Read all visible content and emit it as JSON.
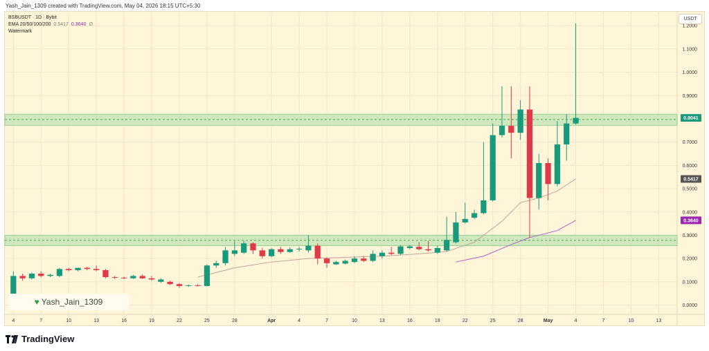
{
  "header": {
    "text": "Yash_Jain_1309 created with TradingView.com, May 04, 2026 18:15 UTC+5:30"
  },
  "legend": {
    "symbol": "BSBUSDT · 1D · Bybit",
    "ema_label": "EMA 20/50/100/200",
    "ema_val1": "0.5417",
    "ema_val2": "0.3640",
    "ema_val3": "∅",
    "watermark_label": "Watermark"
  },
  "watermark": {
    "text": "Yash_Jain_1309"
  },
  "currency": "USDT",
  "footer": {
    "brand": "TradingView",
    "icon": "tradingview-logo-icon"
  },
  "colors": {
    "up": "#1a9a7c",
    "down": "#e03a4a",
    "ema20": "#c2a49a",
    "ema50": "#b060c8",
    "zone": "#bfe3b3",
    "zone_line": "#3a8a3a",
    "bg": "#fff5d9"
  },
  "chart_data": {
    "type": "candlestick",
    "symbol": "BSBUSDT",
    "interval": "1D",
    "exchange": "Bybit",
    "y_ticks": [
      "1.2000",
      "1.1000",
      "1.0000",
      "0.9000",
      "0.8000",
      "0.7000",
      "0.6000",
      "0.5000",
      "0.4000",
      "0.3000",
      "0.2000",
      "0.1000",
      "0.0000"
    ],
    "ylim": [
      -0.04,
      1.26
    ],
    "x_ticks": [
      {
        "day": 4,
        "label": "4"
      },
      {
        "day": 7,
        "label": "7"
      },
      {
        "day": 10,
        "label": "10"
      },
      {
        "day": 13,
        "label": "13"
      },
      {
        "day": 16,
        "label": "16"
      },
      {
        "day": 19,
        "label": "19"
      },
      {
        "day": 22,
        "label": "22"
      },
      {
        "day": 25,
        "label": "25"
      },
      {
        "day": 28,
        "label": "28"
      },
      {
        "day": 32,
        "label": "Apr"
      },
      {
        "day": 35,
        "label": "4"
      },
      {
        "day": 38,
        "label": "7"
      },
      {
        "day": 41,
        "label": "10"
      },
      {
        "day": 44,
        "label": "13"
      },
      {
        "day": 47,
        "label": "16"
      },
      {
        "day": 50,
        "label": "19"
      },
      {
        "day": 53,
        "label": "22"
      },
      {
        "day": 56,
        "label": "25"
      },
      {
        "day": 59,
        "label": "28"
      },
      {
        "day": 62,
        "label": "May"
      },
      {
        "day": 65,
        "label": "4"
      },
      {
        "day": 68,
        "label": "7"
      },
      {
        "day": 71,
        "label": "10"
      },
      {
        "day": 74,
        "label": "13"
      }
    ],
    "x_range": [
      3,
      76
    ],
    "zones": [
      {
        "from": 0.772,
        "to": 0.82,
        "mid": 0.797
      },
      {
        "from": 0.255,
        "to": 0.3,
        "mid": 0.278
      }
    ],
    "price_labels": [
      {
        "value": 0.8041,
        "text": "0.8041",
        "color": "#1a9a7c"
      },
      {
        "value": 0.5417,
        "text": "0.5417",
        "color": "#555555"
      },
      {
        "value": 0.364,
        "text": "0.3640",
        "color": "#9c27b0"
      }
    ],
    "candles": [
      {
        "d": 4,
        "o": 0.035,
        "h": 0.145,
        "l": 0.03,
        "c": 0.125
      },
      {
        "d": 5,
        "o": 0.125,
        "h": 0.135,
        "l": 0.105,
        "c": 0.115
      },
      {
        "d": 6,
        "o": 0.115,
        "h": 0.14,
        "l": 0.11,
        "c": 0.135
      },
      {
        "d": 7,
        "o": 0.135,
        "h": 0.145,
        "l": 0.12,
        "c": 0.125
      },
      {
        "d": 8,
        "o": 0.125,
        "h": 0.135,
        "l": 0.12,
        "c": 0.13
      },
      {
        "d": 9,
        "o": 0.125,
        "h": 0.16,
        "l": 0.12,
        "c": 0.155
      },
      {
        "d": 10,
        "o": 0.155,
        "h": 0.16,
        "l": 0.145,
        "c": 0.15
      },
      {
        "d": 11,
        "o": 0.15,
        "h": 0.16,
        "l": 0.145,
        "c": 0.16
      },
      {
        "d": 12,
        "o": 0.16,
        "h": 0.165,
        "l": 0.15,
        "c": 0.155
      },
      {
        "d": 13,
        "o": 0.155,
        "h": 0.17,
        "l": 0.145,
        "c": 0.15
      },
      {
        "d": 14,
        "o": 0.15,
        "h": 0.155,
        "l": 0.115,
        "c": 0.12
      },
      {
        "d": 15,
        "o": 0.12,
        "h": 0.125,
        "l": 0.112,
        "c": 0.118
      },
      {
        "d": 16,
        "o": 0.118,
        "h": 0.122,
        "l": 0.112,
        "c": 0.115
      },
      {
        "d": 17,
        "o": 0.115,
        "h": 0.13,
        "l": 0.112,
        "c": 0.125
      },
      {
        "d": 18,
        "o": 0.125,
        "h": 0.132,
        "l": 0.112,
        "c": 0.115
      },
      {
        "d": 19,
        "o": 0.115,
        "h": 0.125,
        "l": 0.105,
        "c": 0.11
      },
      {
        "d": 20,
        "o": 0.1,
        "h": 0.115,
        "l": 0.095,
        "c": 0.11
      },
      {
        "d": 21,
        "o": 0.1,
        "h": 0.105,
        "l": 0.085,
        "c": 0.09
      },
      {
        "d": 22,
        "o": 0.09,
        "h": 0.095,
        "l": 0.075,
        "c": 0.082
      },
      {
        "d": 23,
        "o": 0.082,
        "h": 0.088,
        "l": 0.078,
        "c": 0.085
      },
      {
        "d": 24,
        "o": 0.085,
        "h": 0.09,
        "l": 0.08,
        "c": 0.082
      },
      {
        "d": 25,
        "o": 0.082,
        "h": 0.175,
        "l": 0.08,
        "c": 0.17
      },
      {
        "d": 26,
        "o": 0.17,
        "h": 0.19,
        "l": 0.16,
        "c": 0.18
      },
      {
        "d": 27,
        "o": 0.18,
        "h": 0.25,
        "l": 0.17,
        "c": 0.235
      },
      {
        "d": 28,
        "o": 0.22,
        "h": 0.275,
        "l": 0.21,
        "c": 0.235
      },
      {
        "d": 29,
        "o": 0.225,
        "h": 0.275,
        "l": 0.22,
        "c": 0.265
      },
      {
        "d": 30,
        "o": 0.265,
        "h": 0.27,
        "l": 0.22,
        "c": 0.235
      },
      {
        "d": 31,
        "o": 0.235,
        "h": 0.245,
        "l": 0.2,
        "c": 0.21
      },
      {
        "d": 32,
        "o": 0.21,
        "h": 0.245,
        "l": 0.205,
        "c": 0.24
      },
      {
        "d": 33,
        "o": 0.24,
        "h": 0.25,
        "l": 0.22,
        "c": 0.228
      },
      {
        "d": 34,
        "o": 0.228,
        "h": 0.248,
        "l": 0.225,
        "c": 0.24
      },
      {
        "d": 35,
        "o": 0.24,
        "h": 0.25,
        "l": 0.23,
        "c": 0.242
      },
      {
        "d": 36,
        "o": 0.235,
        "h": 0.3,
        "l": 0.225,
        "c": 0.255
      },
      {
        "d": 37,
        "o": 0.255,
        "h": 0.265,
        "l": 0.175,
        "c": 0.2
      },
      {
        "d": 38,
        "o": 0.2,
        "h": 0.205,
        "l": 0.16,
        "c": 0.18
      },
      {
        "d": 39,
        "o": 0.175,
        "h": 0.19,
        "l": 0.172,
        "c": 0.185
      },
      {
        "d": 40,
        "o": 0.178,
        "h": 0.195,
        "l": 0.175,
        "c": 0.19
      },
      {
        "d": 41,
        "o": 0.185,
        "h": 0.21,
        "l": 0.18,
        "c": 0.2
      },
      {
        "d": 42,
        "o": 0.2,
        "h": 0.21,
        "l": 0.185,
        "c": 0.19
      },
      {
        "d": 43,
        "o": 0.19,
        "h": 0.235,
        "l": 0.185,
        "c": 0.22
      },
      {
        "d": 44,
        "o": 0.21,
        "h": 0.235,
        "l": 0.2,
        "c": 0.225
      },
      {
        "d": 45,
        "o": 0.225,
        "h": 0.25,
        "l": 0.215,
        "c": 0.22
      },
      {
        "d": 46,
        "o": 0.22,
        "h": 0.258,
        "l": 0.215,
        "c": 0.252
      },
      {
        "d": 47,
        "o": 0.245,
        "h": 0.258,
        "l": 0.24,
        "c": 0.252
      },
      {
        "d": 48,
        "o": 0.25,
        "h": 0.27,
        "l": 0.235,
        "c": 0.24
      },
      {
        "d": 49,
        "o": 0.24,
        "h": 0.275,
        "l": 0.23,
        "c": 0.235
      },
      {
        "d": 50,
        "o": 0.225,
        "h": 0.255,
        "l": 0.22,
        "c": 0.245
      },
      {
        "d": 51,
        "o": 0.235,
        "h": 0.38,
        "l": 0.23,
        "c": 0.28
      },
      {
        "d": 52,
        "o": 0.27,
        "h": 0.4,
        "l": 0.265,
        "c": 0.355
      },
      {
        "d": 53,
        "o": 0.355,
        "h": 0.44,
        "l": 0.35,
        "c": 0.37
      },
      {
        "d": 54,
        "o": 0.375,
        "h": 0.41,
        "l": 0.37,
        "c": 0.395
      },
      {
        "d": 55,
        "o": 0.395,
        "h": 0.7,
        "l": 0.39,
        "c": 0.45
      },
      {
        "d": 56,
        "o": 0.45,
        "h": 0.78,
        "l": 0.445,
        "c": 0.73
      },
      {
        "d": 57,
        "o": 0.73,
        "h": 0.94,
        "l": 0.72,
        "c": 0.77
      },
      {
        "d": 58,
        "o": 0.77,
        "h": 0.94,
        "l": 0.63,
        "c": 0.74
      },
      {
        "d": 59,
        "o": 0.74,
        "h": 0.88,
        "l": 0.71,
        "c": 0.84
      },
      {
        "d": 60,
        "o": 0.84,
        "h": 0.94,
        "l": 0.29,
        "c": 0.46
      },
      {
        "d": 61,
        "o": 0.46,
        "h": 0.65,
        "l": 0.41,
        "c": 0.61
      },
      {
        "d": 62,
        "o": 0.61,
        "h": 0.63,
        "l": 0.45,
        "c": 0.52
      },
      {
        "d": 63,
        "o": 0.52,
        "h": 0.79,
        "l": 0.51,
        "c": 0.69
      },
      {
        "d": 64,
        "o": 0.69,
        "h": 0.82,
        "l": 0.62,
        "c": 0.78
      },
      {
        "d": 65,
        "o": 0.78,
        "h": 1.21,
        "l": 0.775,
        "c": 0.804
      }
    ],
    "ema20": [
      {
        "d": 24,
        "v": 0.12
      },
      {
        "d": 28,
        "v": 0.16
      },
      {
        "d": 32,
        "v": 0.185
      },
      {
        "d": 36,
        "v": 0.2
      },
      {
        "d": 40,
        "v": 0.205
      },
      {
        "d": 44,
        "v": 0.21
      },
      {
        "d": 48,
        "v": 0.22
      },
      {
        "d": 51,
        "v": 0.23
      },
      {
        "d": 54,
        "v": 0.27
      },
      {
        "d": 57,
        "v": 0.36
      },
      {
        "d": 59,
        "v": 0.44
      },
      {
        "d": 61,
        "v": 0.46
      },
      {
        "d": 63,
        "v": 0.49
      },
      {
        "d": 65,
        "v": 0.542
      }
    ],
    "ema50": [
      {
        "d": 52,
        "v": 0.185
      },
      {
        "d": 55,
        "v": 0.21
      },
      {
        "d": 58,
        "v": 0.26
      },
      {
        "d": 60,
        "v": 0.29
      },
      {
        "d": 63,
        "v": 0.32
      },
      {
        "d": 65,
        "v": 0.364
      }
    ]
  }
}
